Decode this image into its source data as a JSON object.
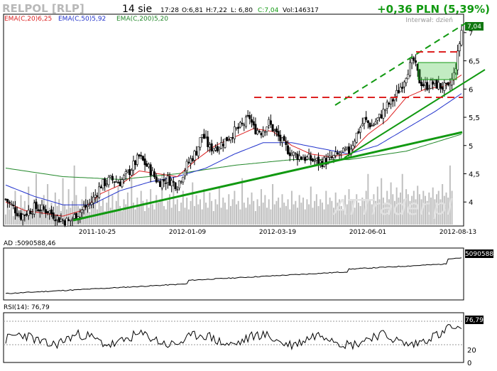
{
  "header": {
    "ticker": "RELPOL [RLP]",
    "date": "14 sie",
    "time": "17:28",
    "open": "O:6,81",
    "high": "H:7,22",
    "low": "L: 6,80",
    "close": "C:7,04",
    "volume": "Vol:146317",
    "change": "+0,36 PLN (5,39%)",
    "interval": "Interwał: dzień",
    "watermark": "ATTrader.pl"
  },
  "legend": [
    {
      "label": "EMA(C,20)6,25",
      "color": "#dd2222"
    },
    {
      "label": "EMA(C,50)5,92",
      "color": "#2233cc"
    },
    {
      "label": "EMA(C,200)5,20",
      "color": "#22882a"
    }
  ],
  "colors": {
    "candle_up": "#ffffff",
    "candle_down": "#000000",
    "ema20": "#dd2222",
    "ema50": "#2233cc",
    "ema200": "#22882a",
    "trend": "#119911",
    "resistance": "#dd2222",
    "volume": "#c0c0c0",
    "last_price_box": "#117711"
  },
  "chart_data": [
    {
      "type": "candlestick",
      "panel": "price",
      "last_price_label": "7,04",
      "y_ticks": [
        "4",
        "4,5",
        "5",
        "5,5",
        "6",
        "6,5",
        "7"
      ],
      "x_ticks": [
        "2011-10-25",
        "2012-01-09",
        "2012-03-19",
        "2012-06-01",
        "2012-08-13"
      ],
      "ylim": [
        3.6,
        7.3
      ],
      "y_tick_values": [
        4,
        4.5,
        5,
        5.5,
        6,
        6.5,
        7
      ],
      "close_path": [
        [
          0,
          4.05
        ],
        [
          8,
          3.75
        ],
        [
          15,
          3.9
        ],
        [
          22,
          3.85
        ],
        [
          28,
          3.7
        ],
        [
          33,
          3.65
        ],
        [
          38,
          3.8
        ],
        [
          45,
          4.0
        ],
        [
          50,
          4.3
        ],
        [
          55,
          4.4
        ],
        [
          60,
          4.35
        ],
        [
          65,
          4.55
        ],
        [
          70,
          4.8
        ],
        [
          75,
          4.6
        ],
        [
          80,
          4.35
        ],
        [
          85,
          4.4
        ],
        [
          90,
          4.3
        ],
        [
          95,
          4.65
        ],
        [
          100,
          4.9
        ],
        [
          103,
          5.2
        ],
        [
          107,
          4.95
        ],
        [
          112,
          5.0
        ],
        [
          117,
          5.15
        ],
        [
          120,
          5.25
        ],
        [
          124,
          5.35
        ],
        [
          128,
          5.5
        ],
        [
          130,
          5.3
        ],
        [
          134,
          5.25
        ],
        [
          138,
          5.4
        ],
        [
          142,
          5.2
        ],
        [
          146,
          5.0
        ],
        [
          150,
          4.85
        ],
        [
          155,
          4.8
        ],
        [
          160,
          4.75
        ],
        [
          165,
          4.7
        ],
        [
          170,
          4.75
        ],
        [
          175,
          4.85
        ],
        [
          180,
          4.9
        ],
        [
          184,
          5.2
        ],
        [
          188,
          5.45
        ],
        [
          192,
          5.35
        ],
        [
          196,
          5.5
        ],
        [
          200,
          5.7
        ],
        [
          204,
          5.85
        ],
        [
          208,
          6.1
        ],
        [
          211,
          6.35
        ],
        [
          214,
          6.5
        ],
        [
          217,
          6.15
        ],
        [
          220,
          6.05
        ],
        [
          224,
          6.1
        ],
        [
          228,
          6.05
        ],
        [
          232,
          6.0
        ],
        [
          235,
          6.25
        ],
        [
          237,
          6.6
        ],
        [
          239,
          7.04
        ]
      ],
      "ema20_path": [
        [
          0,
          4.0
        ],
        [
          10,
          3.85
        ],
        [
          20,
          3.8
        ],
        [
          30,
          3.75
        ],
        [
          40,
          3.85
        ],
        [
          50,
          4.15
        ],
        [
          60,
          4.3
        ],
        [
          70,
          4.55
        ],
        [
          80,
          4.5
        ],
        [
          90,
          4.45
        ],
        [
          100,
          4.75
        ],
        [
          110,
          5.0
        ],
        [
          120,
          5.15
        ],
        [
          130,
          5.3
        ],
        [
          140,
          5.25
        ],
        [
          150,
          5.0
        ],
        [
          160,
          4.85
        ],
        [
          170,
          4.8
        ],
        [
          180,
          4.85
        ],
        [
          190,
          5.2
        ],
        [
          200,
          5.45
        ],
        [
          210,
          5.85
        ],
        [
          220,
          6.0
        ],
        [
          230,
          6.05
        ],
        [
          239,
          6.25
        ]
      ],
      "ema50_path": [
        [
          0,
          4.3
        ],
        [
          15,
          4.1
        ],
        [
          30,
          3.95
        ],
        [
          45,
          3.95
        ],
        [
          60,
          4.2
        ],
        [
          75,
          4.35
        ],
        [
          90,
          4.45
        ],
        [
          105,
          4.6
        ],
        [
          120,
          4.85
        ],
        [
          135,
          5.05
        ],
        [
          150,
          5.05
        ],
        [
          165,
          4.95
        ],
        [
          180,
          4.85
        ],
        [
          195,
          5.0
        ],
        [
          210,
          5.3
        ],
        [
          225,
          5.6
        ],
        [
          239,
          5.92
        ]
      ],
      "ema200_path": [
        [
          0,
          4.6
        ],
        [
          30,
          4.45
        ],
        [
          60,
          4.4
        ],
        [
          90,
          4.5
        ],
        [
          120,
          4.65
        ],
        [
          150,
          4.75
        ],
        [
          180,
          4.75
        ],
        [
          210,
          4.9
        ],
        [
          239,
          5.2
        ]
      ],
      "volume": [
        12,
        30,
        18,
        25,
        10,
        40,
        22,
        15,
        35,
        20,
        28,
        16,
        45,
        18,
        12,
        30,
        60,
        25,
        18,
        22,
        35,
        15,
        48,
        20,
        26,
        14,
        38,
        22,
        30,
        16,
        55,
        24,
        18,
        42,
        20,
        28,
        70,
        35,
        22,
        18,
        30,
        26,
        45,
        20,
        15,
        38,
        24,
        32,
        18,
        50,
        22,
        30,
        16,
        26,
        40,
        20,
        35,
        18,
        28,
        45,
        22,
        16,
        30,
        24,
        38,
        20,
        55,
        26,
        18,
        32,
        22,
        40,
        28,
        16,
        30,
        20,
        42,
        24,
        18,
        35,
        26,
        30,
        60,
        22,
        18,
        28,
        36,
        20,
        45,
        24,
        30,
        16,
        26,
        40,
        20,
        32,
        18,
        28,
        50,
        22,
        35,
        24,
        30,
        18,
        42,
        26,
        20,
        38,
        28,
        16,
        30,
        24,
        45,
        20,
        32,
        26,
        18,
        36,
        22,
        30,
        40,
        24,
        28,
        18,
        55,
        26,
        20,
        32,
        24,
        38,
        28,
        16,
        30,
        22,
        42,
        26,
        35,
        20,
        30,
        18,
        48,
        24,
        28,
        32,
        20,
        36,
        26,
        22,
        30,
        18,
        40,
        24,
        28,
        20,
        35,
        26,
        32,
        18,
        30,
        24,
        45,
        20,
        28,
        36,
        22,
        30,
        26,
        18,
        40,
        24,
        32,
        28,
        20,
        38,
        26,
        30,
        22,
        18,
        35,
        24,
        42,
        28,
        30,
        20,
        36,
        26,
        22,
        32,
        28,
        40,
        60,
        30,
        24,
        36,
        28,
        45,
        30,
        55,
        32,
        26,
        40,
        30,
        50,
        36,
        28,
        44,
        32,
        38,
        60,
        30,
        42,
        36,
        28,
        34,
        40,
        30,
        46,
        36,
        30,
        40,
        34,
        28,
        38,
        32,
        44,
        30,
        36,
        40,
        30,
        48,
        34,
        38,
        32,
        70,
        40
      ]
    },
    {
      "type": "line",
      "panel": "AD",
      "title": "AD :5090588,46",
      "last_value_label": "5090588"
    },
    {
      "type": "line",
      "panel": "RSI",
      "title": "RSI(14): 76,79",
      "last_value_label": "76,79",
      "y_ticks": [
        "20",
        "0"
      ]
    }
  ]
}
